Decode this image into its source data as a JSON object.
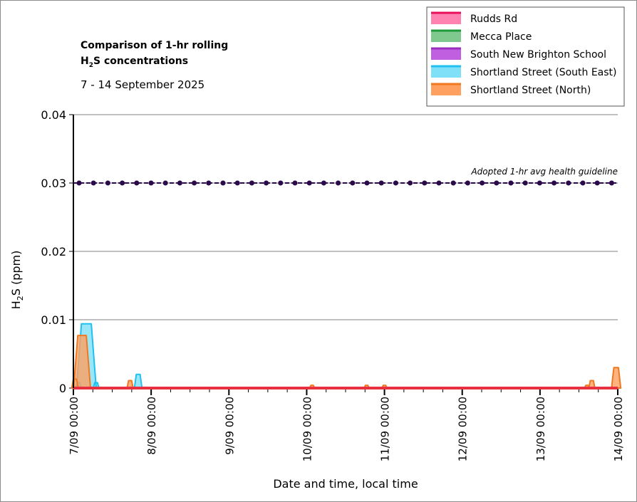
{
  "chart_data": {
    "type": "area",
    "title_line1": "Comparison of 1-hr rolling",
    "title_line2_main": "H",
    "title_line2_sub": "2",
    "title_line2_rest": "S concentrations",
    "subtitle": "7 - 14 September 2025",
    "ylabel_main": "H",
    "ylabel_sub": "2",
    "ylabel_rest": "S (ppm)",
    "xlabel": "Date and time, local time",
    "ylim": [
      0,
      0.04
    ],
    "yticks": [
      "0",
      "0.01",
      "0.02",
      "0.03",
      "0.04"
    ],
    "xlim": [
      "2025-09-07T00:00",
      "2025-09-14T00:00"
    ],
    "xticks": [
      "7/09 00:00",
      "8/09 00:00",
      "9/09 00:00",
      "10/09 00:00",
      "11/09 00:00",
      "12/09 00:00",
      "13/09 00:00",
      "14/09 00:00"
    ],
    "grid": true,
    "legend_position": "top-right",
    "guideline": {
      "value": 0.03,
      "label": "Adopted 1-hr avg health guideline",
      "color": "#2b0a4a"
    },
    "series": [
      {
        "name": "Rudds Rd",
        "color": "#ff82b0",
        "line": "#e8105a",
        "points": []
      },
      {
        "name": "Mecca Place",
        "color": "#7fc98f",
        "line": "#1e9a3c",
        "points": []
      },
      {
        "name": "South New Brighton School",
        "color": "#c060e0",
        "line": "#9a30c0",
        "points": []
      },
      {
        "name": "Shortland Street (South East)",
        "color": "#7fe0f8",
        "line": "#20c0f0",
        "points": [
          [
            "2025-09-07T01:30",
            0.0008
          ],
          [
            "2025-09-07T04:00",
            0.0094
          ],
          [
            "2025-09-07T07:00",
            0.0008
          ],
          [
            "2025-09-07T20:00",
            0.002
          ]
        ]
      },
      {
        "name": "Shortland Street (North)",
        "color": "#ffa060",
        "line": "#f07820",
        "points": [
          [
            "2025-09-07T00:30",
            0.0013
          ],
          [
            "2025-09-07T02:40",
            0.0077
          ],
          [
            "2025-09-07T17:30",
            0.0011
          ],
          [
            "2025-09-10T01:40",
            0.0004
          ],
          [
            "2025-09-10T18:30",
            0.0004
          ],
          [
            "2025-09-11T00:00",
            0.0004
          ],
          [
            "2025-09-13T14:30",
            0.0004
          ],
          [
            "2025-09-13T16:00",
            0.0011
          ],
          [
            "2025-09-13T23:30",
            0.003
          ]
        ]
      }
    ]
  }
}
